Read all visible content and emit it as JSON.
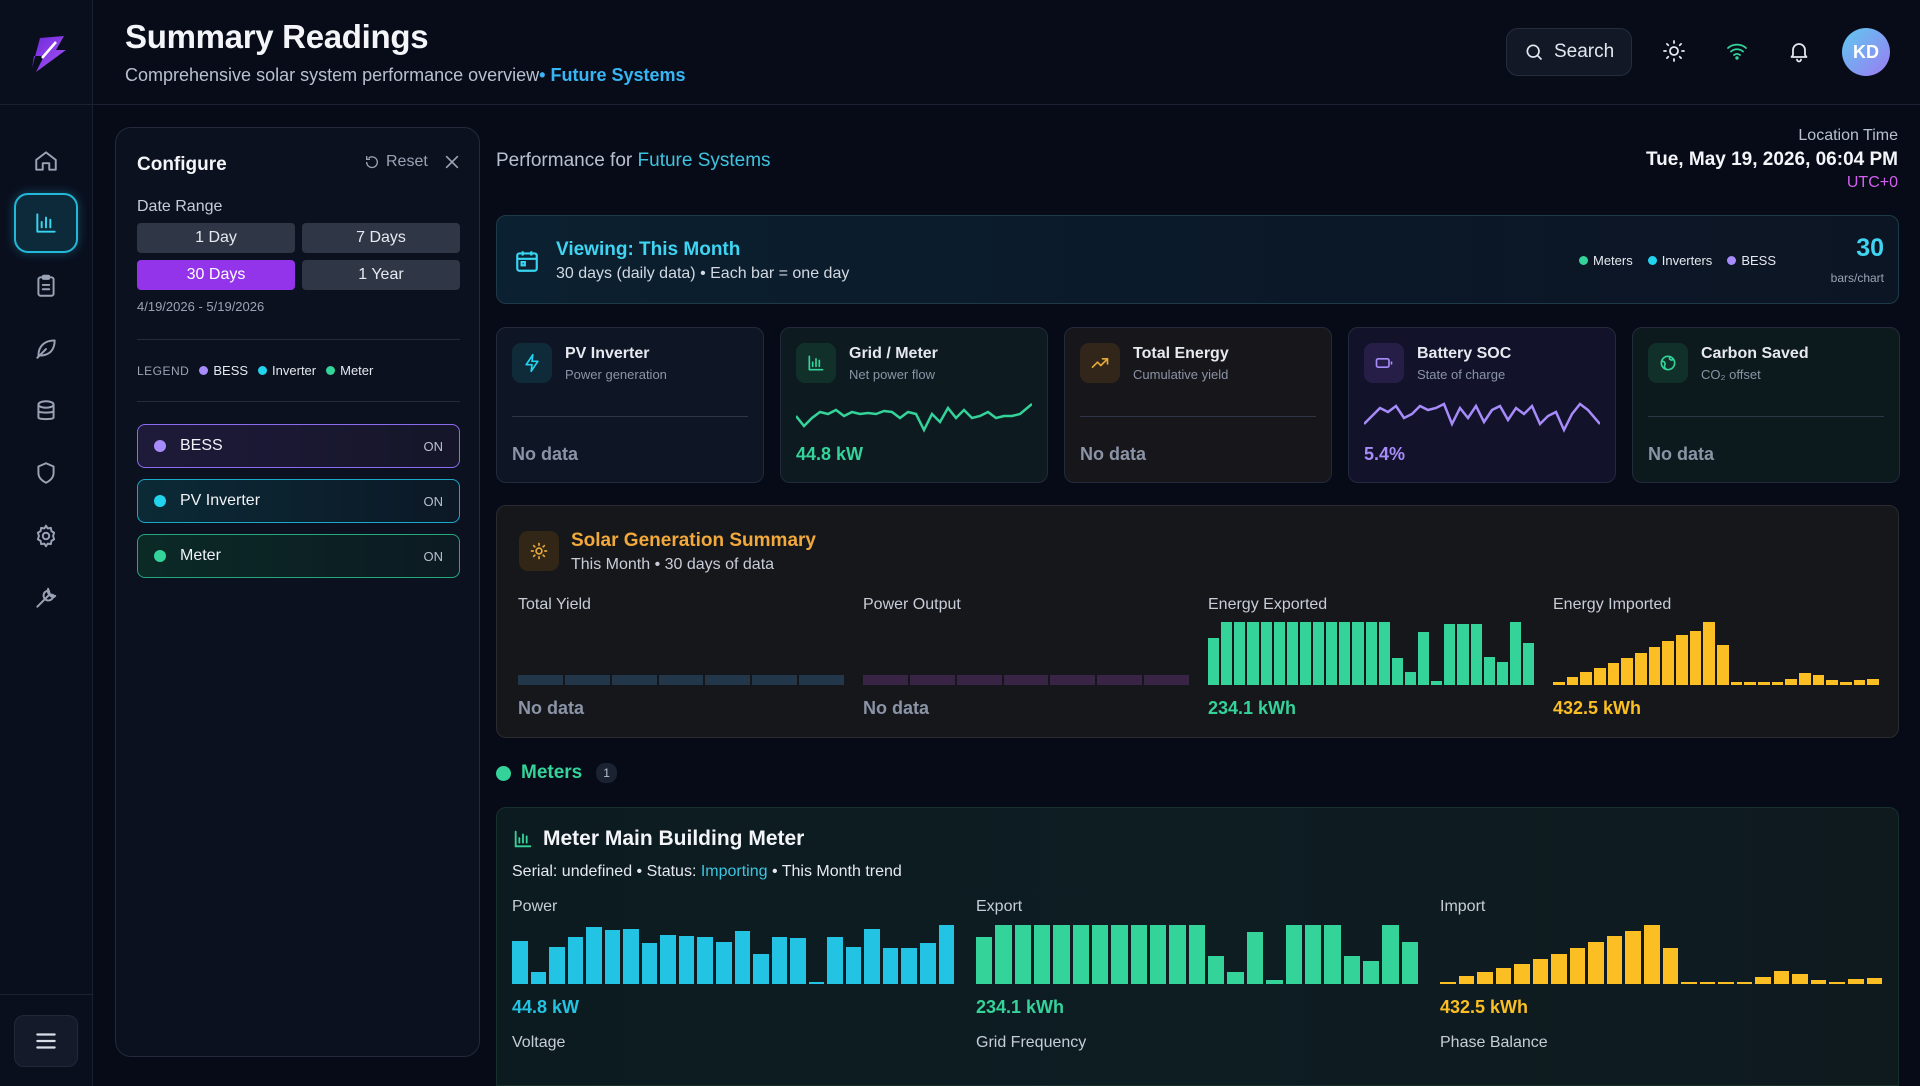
{
  "header": {
    "title": "Summary Readings",
    "subtitle": "Comprehensive solar system performance overview",
    "subtitle_accent": "• Future Systems",
    "search_label": "Search",
    "avatar_initials": "KD"
  },
  "sidebar": {
    "items": [
      {
        "icon": "home-icon"
      },
      {
        "icon": "chart-icon",
        "active": true
      },
      {
        "icon": "clipboard-icon"
      },
      {
        "icon": "leaf-icon"
      },
      {
        "icon": "database-icon"
      },
      {
        "icon": "shield-icon"
      },
      {
        "icon": "gear-icon"
      },
      {
        "icon": "wrench-icon"
      }
    ],
    "menu_icon": "menu-icon"
  },
  "configure": {
    "title": "Configure",
    "reset_label": "Reset",
    "date_range_label": "Date Range",
    "ranges": [
      "1 Day",
      "7 Days",
      "30 Days",
      "1 Year"
    ],
    "selected_range": "30 Days",
    "date_text": "4/19/2026 - 5/19/2026",
    "legend_title": "LEGEND",
    "legend": [
      "BESS",
      "Inverter",
      "Meter"
    ],
    "toggles": [
      {
        "label": "BESS",
        "state": "ON",
        "color": "#a78bfa"
      },
      {
        "label": "PV Inverter",
        "state": "ON",
        "color": "#22d3ee"
      },
      {
        "label": "Meter",
        "state": "ON",
        "color": "#34d399"
      }
    ]
  },
  "main": {
    "perf_prefix": "Performance for",
    "perf_site": "Future Systems",
    "location_label": "Location Time",
    "location_time": "Tue, May 19, 2026, 06:04 PM",
    "timezone": "UTC+0"
  },
  "viewing": {
    "title": "Viewing: This Month",
    "subtitle": "30 days (daily data) • Each bar = one day",
    "legend": [
      "Meters",
      "Inverters",
      "BESS"
    ],
    "count": "30",
    "count_label": "bars/chart"
  },
  "kpis": [
    {
      "title": "PV Inverter",
      "sub": "Power generation",
      "value": "No data",
      "icon": "bolt-icon"
    },
    {
      "title": "Grid / Meter",
      "sub": "Net power flow",
      "value": "44.8 kW",
      "icon": "bar-chart-icon"
    },
    {
      "title": "Total Energy",
      "sub": "Cumulative yield",
      "value": "No data",
      "icon": "trend-up-icon"
    },
    {
      "title": "Battery SOC",
      "sub": "State of charge",
      "value": "5.4%",
      "icon": "battery-icon"
    },
    {
      "title": "Carbon Saved",
      "sub": "CO₂ offset",
      "value": "No data",
      "icon": "globe-icon"
    }
  ],
  "solar": {
    "title": "Solar Generation Summary",
    "subtitle": "This Month • 30 days of data",
    "columns": [
      {
        "label": "Total Yield",
        "value": "No data"
      },
      {
        "label": "Power Output",
        "value": "No data"
      },
      {
        "label": "Energy Exported",
        "value": "234.1 kWh"
      },
      {
        "label": "Energy Imported",
        "value": "432.5 kWh"
      }
    ],
    "exported_bars": [
      0.74,
      0.98,
      0.98,
      0.98,
      0.98,
      0.98,
      0.98,
      0.98,
      0.98,
      0.98,
      0.98,
      0.98,
      0.98,
      0.98,
      0.42,
      0.2,
      0.83,
      0.06,
      0.96,
      0.96,
      0.96,
      0.44,
      0.36,
      0.98,
      0.65
    ],
    "imported_bars": [
      0.04,
      0.12,
      0.2,
      0.26,
      0.34,
      0.42,
      0.5,
      0.6,
      0.68,
      0.78,
      0.84,
      0.98,
      0.62,
      0.04,
      0.04,
      0.04,
      0.04,
      0.1,
      0.18,
      0.16,
      0.08,
      0.04,
      0.08,
      0.1
    ],
    "yield_bars": 7,
    "output_bars": 7
  },
  "meters": {
    "section_title": "Meters",
    "count": "1",
    "card": {
      "title": "Meter Main Building Meter",
      "serial_text": "Serial: undefined • Status: ",
      "status": "Importing",
      "trend_text": " • This Month trend",
      "columns": [
        {
          "label": "Power",
          "value": "44.8 kW",
          "color": "#22c3e3"
        },
        {
          "label": "Export",
          "value": "234.1 kWh",
          "color": "#34d399"
        },
        {
          "label": "Import",
          "value": "432.5 kWh",
          "color": "#fbbf24"
        }
      ],
      "power_bars": [
        0.72,
        0.2,
        0.62,
        0.78,
        0.95,
        0.9,
        0.92,
        0.68,
        0.82,
        0.8,
        0.78,
        0.7,
        0.88,
        0.5,
        0.78,
        0.76,
        0.04,
        0.78,
        0.62,
        0.92,
        0.6,
        0.6,
        0.68,
        0.98
      ],
      "export_bars": [
        0.78,
        0.98,
        0.98,
        0.98,
        0.98,
        0.98,
        0.98,
        0.98,
        0.98,
        0.98,
        0.98,
        0.98,
        0.46,
        0.2,
        0.86,
        0.06,
        0.98,
        0.98,
        0.98,
        0.46,
        0.38,
        0.98,
        0.7
      ],
      "import_bars": [
        0.04,
        0.14,
        0.2,
        0.26,
        0.34,
        0.42,
        0.5,
        0.6,
        0.7,
        0.8,
        0.88,
        0.98,
        0.6,
        0.04,
        0.04,
        0.04,
        0.04,
        0.12,
        0.22,
        0.16,
        0.06,
        0.04,
        0.08,
        0.1
      ],
      "lower_labels": [
        "Voltage",
        "Grid Frequency",
        "Phase Balance"
      ]
    }
  },
  "colors": {
    "accent_cyan": "#3ed4f2",
    "purple": "#9333ea",
    "green": "#34d399",
    "amber": "#fbbf24",
    "violet": "#a78bfa"
  }
}
